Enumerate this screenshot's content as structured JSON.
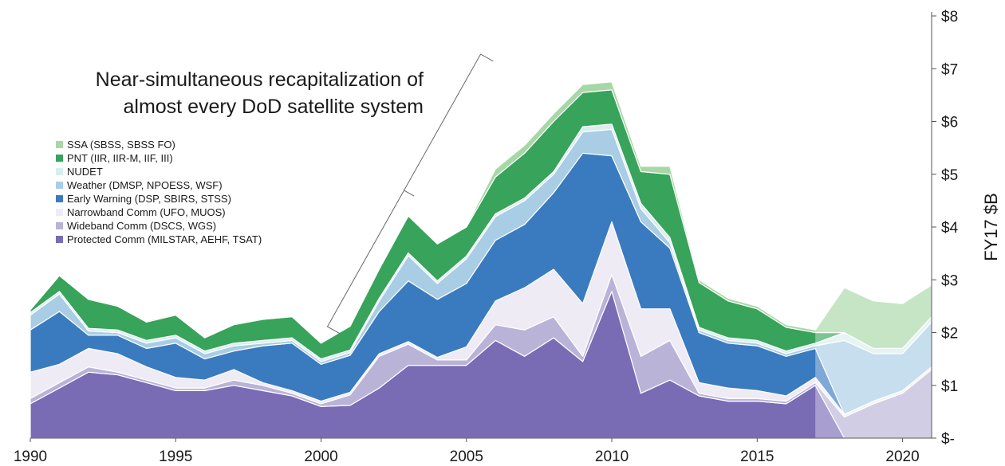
{
  "chart_data": {
    "type": "area",
    "stacked": true,
    "title": "",
    "xlabel": "",
    "ylabel": "FY17 $B",
    "xlim": [
      1990,
      2021
    ],
    "ylim": [
      0,
      8
    ],
    "x_ticks": [
      "1990",
      "1995",
      "2000",
      "2005",
      "2010",
      "2015",
      "2020"
    ],
    "x_tick_values": [
      1990,
      1995,
      2000,
      2005,
      2010,
      2015,
      2020
    ],
    "y_ticks": [
      "$-",
      "$1",
      "$2",
      "$3",
      "$4",
      "$5",
      "$6",
      "$7",
      "$8"
    ],
    "y_tick_values": [
      0,
      1,
      2,
      3,
      4,
      5,
      6,
      7,
      8
    ],
    "legend_position": "left",
    "annotation": {
      "lines": [
        "Near-simultaneous recapitalization of",
        "almost every DoD satellite system"
      ],
      "bracket_from_year": 2000,
      "bracket_to_year": 2009
    },
    "projection_start_year": 2017,
    "x": [
      1990,
      1991,
      1992,
      1993,
      1994,
      1995,
      1996,
      1997,
      1998,
      1999,
      2000,
      2001,
      2002,
      2003,
      2004,
      2005,
      2006,
      2007,
      2008,
      2009,
      2010,
      2011,
      2012,
      2013,
      2014,
      2015,
      2016,
      2017,
      2018,
      2019,
      2020,
      2021
    ],
    "series": [
      {
        "name": "Protected Comm (MILSTAR, AEHF, TSAT)",
        "color": "#7a6bb5",
        "values": [
          0.65,
          0.95,
          1.25,
          1.2,
          1.05,
          0.9,
          0.9,
          1.0,
          0.9,
          0.8,
          0.6,
          0.62,
          0.95,
          1.38,
          1.38,
          1.38,
          1.85,
          1.55,
          1.9,
          1.45,
          2.78,
          0.85,
          1.1,
          0.8,
          0.7,
          0.7,
          0.65,
          1.0,
          0.0,
          0.0,
          0.0,
          0.0
        ]
      },
      {
        "name": "Wideband Comm (DSCS, WGS)",
        "color": "#b9b3d8",
        "values": [
          0.1,
          0.1,
          0.1,
          0.05,
          0.05,
          0.05,
          0.05,
          0.1,
          0.1,
          0.05,
          0.05,
          0.2,
          0.6,
          0.4,
          0.1,
          0.1,
          0.3,
          0.5,
          0.4,
          0.1,
          0.32,
          0.7,
          0.75,
          0.05,
          0.05,
          0.05,
          0.05,
          0.05,
          0.4,
          0.65,
          0.85,
          1.3
        ]
      },
      {
        "name": "Narrowband Comm (UFO, MUOS)",
        "color": "#eeebf5",
        "values": [
          0.5,
          0.35,
          0.35,
          0.35,
          0.25,
          0.2,
          0.15,
          0.2,
          0.05,
          0.05,
          0.05,
          0.05,
          0.05,
          0.05,
          0.05,
          0.25,
          0.45,
          0.8,
          0.9,
          1.0,
          1.0,
          0.9,
          0.6,
          0.2,
          0.2,
          0.15,
          0.1,
          0.1,
          0.05,
          0.05,
          0.05,
          0.05
        ]
      },
      {
        "name": "Early Warning (DSP, SBIRS, STSS)",
        "color": "#3a7bc0",
        "values": [
          0.8,
          1.0,
          0.25,
          0.35,
          0.35,
          0.65,
          0.4,
          0.35,
          0.7,
          0.9,
          0.7,
          0.7,
          0.8,
          1.15,
          1.1,
          1.2,
          1.15,
          1.2,
          1.45,
          2.85,
          1.25,
          1.65,
          1.15,
          0.95,
          0.85,
          0.85,
          0.75,
          0.55,
          0.0,
          0.0,
          0.0,
          0.0
        ]
      },
      {
        "name": "Weather (DMSP, NPOESS, WSF)",
        "color": "#a8cde5",
        "values": [
          0.28,
          0.33,
          0.08,
          0.05,
          0.1,
          0.1,
          0.1,
          0.1,
          0.05,
          0.05,
          0.05,
          0.05,
          0.2,
          0.48,
          0.3,
          0.47,
          0.45,
          0.45,
          0.35,
          0.4,
          0.5,
          0.25,
          0.1,
          0.05,
          0.05,
          0.05,
          0.05,
          0.05,
          1.4,
          0.9,
          0.7,
          0.85
        ]
      },
      {
        "name": "NUDET",
        "color": "#d9eeee",
        "values": [
          0.05,
          0.05,
          0.05,
          0.05,
          0.05,
          0.05,
          0.05,
          0.05,
          0.05,
          0.05,
          0.05,
          0.05,
          0.05,
          0.05,
          0.05,
          0.05,
          0.05,
          0.05,
          0.05,
          0.1,
          0.1,
          0.1,
          0.1,
          0.05,
          0.05,
          0.05,
          0.05,
          0.05,
          0.15,
          0.1,
          0.1,
          0.1
        ]
      },
      {
        "name": "PNT (IIR, IIR-M, IIF, III)",
        "color": "#38a35a",
        "values": [
          0.05,
          0.3,
          0.55,
          0.45,
          0.35,
          0.38,
          0.25,
          0.35,
          0.4,
          0.4,
          0.3,
          0.45,
          0.55,
          0.7,
          0.7,
          0.55,
          0.7,
          0.85,
          0.95,
          0.65,
          0.65,
          0.6,
          1.2,
          0.85,
          0.7,
          0.6,
          0.45,
          0.2,
          0.0,
          0.0,
          0.0,
          0.0
        ]
      },
      {
        "name": "SSA (SBSS, SBSS FO)",
        "color": "#a7d7a7",
        "values": [
          0.02,
          0.02,
          0.02,
          0.02,
          0.02,
          0.02,
          0.02,
          0.02,
          0.02,
          0.02,
          0.02,
          0.02,
          0.02,
          0.02,
          0.02,
          0.02,
          0.15,
          0.15,
          0.15,
          0.15,
          0.15,
          0.1,
          0.15,
          0.05,
          0.05,
          0.05,
          0.05,
          0.05,
          0.85,
          0.9,
          0.85,
          0.6
        ]
      }
    ]
  }
}
